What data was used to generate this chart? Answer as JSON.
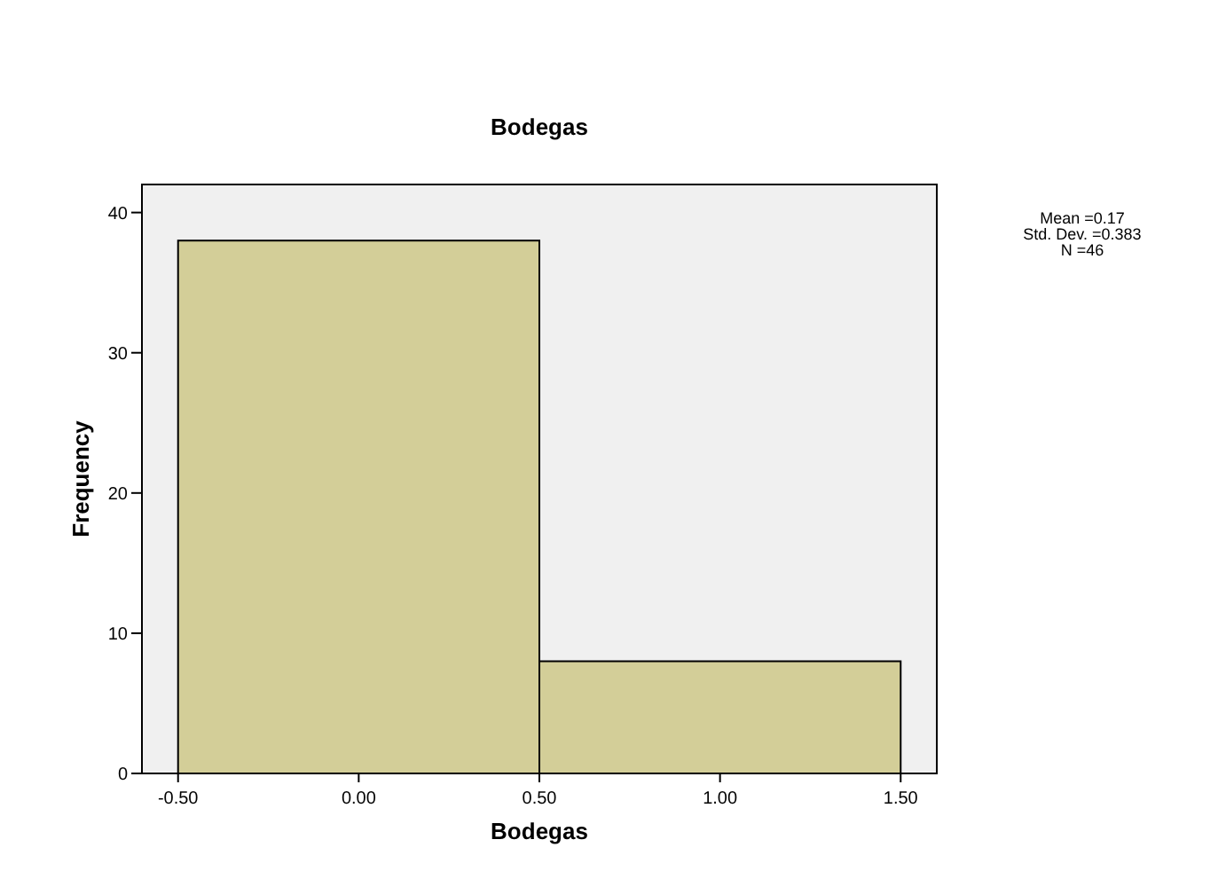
{
  "chart_data": {
    "type": "histogram",
    "title": "Bodegas",
    "xlabel": "Bodegas",
    "ylabel": "Frequency",
    "bins": [
      -0.5,
      0.5,
      1.5
    ],
    "values": [
      38,
      8
    ],
    "color": "#d3ce98",
    "xlim": [
      -0.6,
      1.6
    ],
    "xticks": [
      {
        "value": -0.5,
        "label": "-0.50"
      },
      {
        "value": 0,
        "label": "0.00"
      },
      {
        "value": 0.5,
        "label": "0.50"
      },
      {
        "value": 1,
        "label": "1.00"
      },
      {
        "value": 1.5,
        "label": "1.50"
      }
    ],
    "ylim": [
      0,
      42
    ],
    "yticks": [
      0,
      10,
      20,
      30,
      40
    ],
    "grid": false,
    "annotations": [
      "Mean =0.17",
      "Std. Dev. =0.383",
      "N =46"
    ]
  }
}
